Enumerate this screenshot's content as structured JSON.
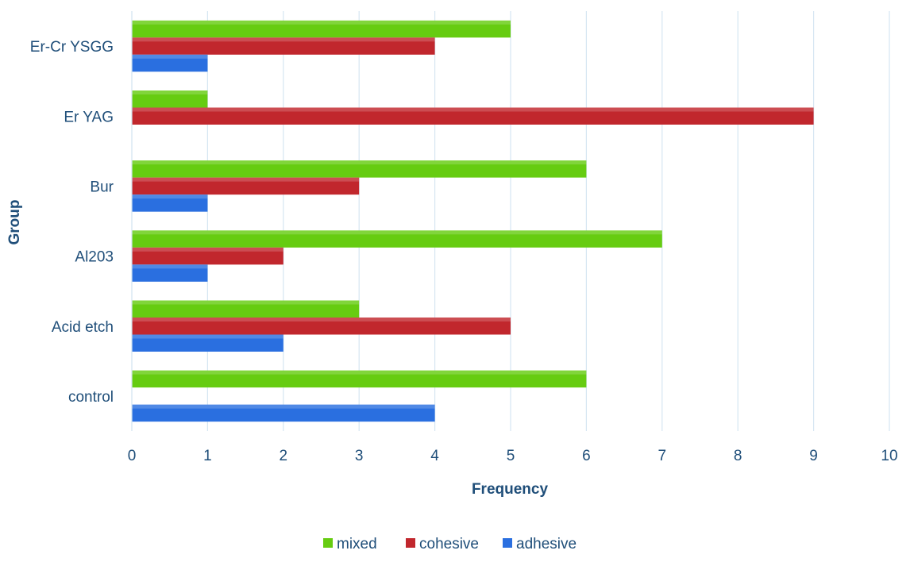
{
  "chart_data": {
    "type": "bar",
    "orientation": "horizontal",
    "categories": [
      "control",
      "Acid etch",
      "Al203",
      "Bur",
      "Er YAG",
      "Er-Cr YSGG"
    ],
    "series": [
      {
        "name": "mixed",
        "values": [
          6,
          3,
          7,
          6,
          1,
          5
        ],
        "color": "#66cc11"
      },
      {
        "name": "cohesive",
        "values": [
          0,
          5,
          2,
          3,
          9,
          4
        ],
        "color": "#c1272d"
      },
      {
        "name": "adhesive",
        "values": [
          4,
          2,
          1,
          1,
          0,
          1
        ],
        "color": "#2a6fe0"
      }
    ],
    "xlabel": "Frequency",
    "ylabel": "Group",
    "xlim": [
      0,
      10
    ],
    "xticks": [
      "0",
      "1",
      "2",
      "3",
      "4",
      "5",
      "6",
      "7",
      "8",
      "9",
      "10"
    ],
    "grid": "vertical",
    "legend": "bottom"
  }
}
